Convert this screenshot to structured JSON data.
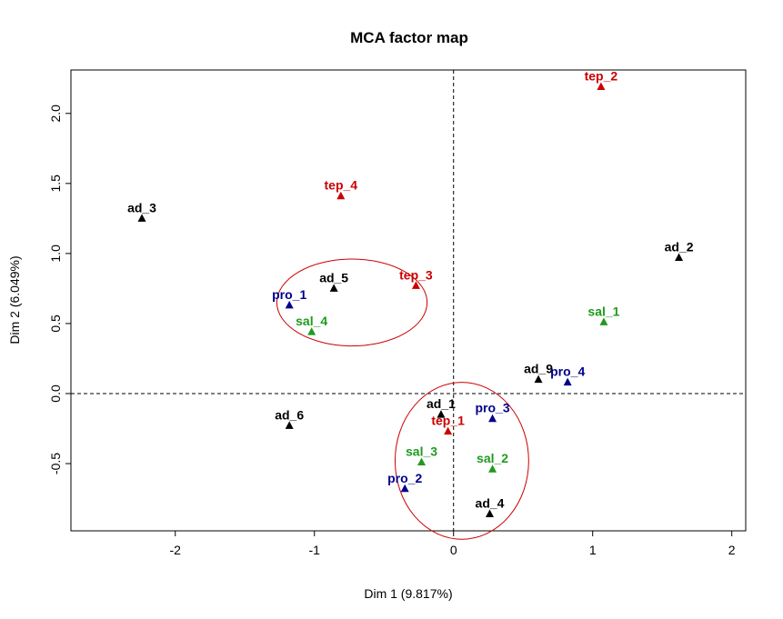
{
  "chart_data": {
    "type": "scatter",
    "title": "MCA factor map",
    "xlabel": "Dim 1 (9.817%)",
    "ylabel": "Dim 2 (6.049%)",
    "xlim": [
      -2.75,
      2.1
    ],
    "ylim": [
      -0.98,
      2.31
    ],
    "xticks": [
      -2,
      -1,
      0,
      1,
      2
    ],
    "yticks": [
      -0.5,
      0.0,
      0.5,
      1.0,
      1.5,
      2.0
    ],
    "ytick_labels": [
      "-0.5",
      "0.0",
      "0.5",
      "1.0",
      "1.5",
      "2.0"
    ],
    "grid": false,
    "reference_lines": {
      "x": 0,
      "y": 0,
      "style": "dashed"
    },
    "colors": {
      "ad": "#000000",
      "tep": "#cc0000",
      "pro": "#00008b",
      "sal": "#1f9a1f",
      "ellipse": "#cc0000"
    },
    "series": [
      {
        "group": "ad",
        "color": "#000000",
        "points": [
          {
            "label": "ad_1",
            "x": -0.09,
            "y": -0.15
          },
          {
            "label": "ad_2",
            "x": 1.62,
            "y": 0.97
          },
          {
            "label": "ad_3",
            "x": -2.24,
            "y": 1.25
          },
          {
            "label": "ad_4",
            "x": 0.26,
            "y": -0.86
          },
          {
            "label": "ad_5",
            "x": -0.86,
            "y": 0.75
          },
          {
            "label": "ad_6",
            "x": -1.18,
            "y": -0.23
          },
          {
            "label": "ad_9",
            "x": 0.61,
            "y": 0.1
          }
        ]
      },
      {
        "group": "tep",
        "color": "#cc0000",
        "points": [
          {
            "label": "tep_1",
            "x": -0.04,
            "y": -0.27
          },
          {
            "label": "tep_2",
            "x": 1.06,
            "y": 2.19
          },
          {
            "label": "tep_3",
            "x": -0.27,
            "y": 0.77
          },
          {
            "label": "tep_4",
            "x": -0.81,
            "y": 1.41
          }
        ]
      },
      {
        "group": "pro",
        "color": "#00008b",
        "points": [
          {
            "label": "pro_1",
            "x": -1.18,
            "y": 0.63
          },
          {
            "label": "pro_2",
            "x": -0.35,
            "y": -0.68
          },
          {
            "label": "pro_3",
            "x": 0.28,
            "y": -0.18
          },
          {
            "label": "pro_4",
            "x": 0.82,
            "y": 0.08
          }
        ]
      },
      {
        "group": "sal",
        "color": "#1f9a1f",
        "points": [
          {
            "label": "sal_1",
            "x": 1.08,
            "y": 0.51
          },
          {
            "label": "sal_2",
            "x": 0.28,
            "y": -0.54
          },
          {
            "label": "sal_3",
            "x": -0.23,
            "y": -0.49
          },
          {
            "label": "sal_4",
            "x": -1.02,
            "y": 0.44
          }
        ]
      }
    ],
    "ellipses": [
      {
        "cx": -0.73,
        "cy": 0.65,
        "rx": 0.54,
        "ry": 0.31
      },
      {
        "cx": 0.06,
        "cy": -0.48,
        "rx": 0.48,
        "ry": 0.56
      }
    ]
  }
}
